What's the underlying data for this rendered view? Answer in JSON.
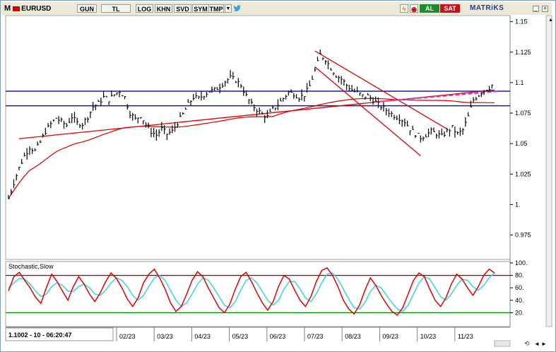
{
  "toolbar": {
    "menu_letter": "M",
    "symbol": "EURUSD",
    "buttons": [
      "GUN",
      "TL",
      "LOG",
      "KHN",
      "SVD",
      "SYM",
      "TMP"
    ],
    "buy_label": "AL",
    "sell_label": "SAT",
    "brand": "MATRiKS"
  },
  "status": {
    "cursor_readout": "1.1002 - 10 - 06:20:47"
  },
  "colors": {
    "price_bars": "#000000",
    "resistance": "#1a1aa0",
    "trend": "#e00000",
    "moving_average": "#d00000",
    "stoch_k": "#e00000",
    "stoch_d": "#40d0e0",
    "stoch_upper": "#a00000",
    "stoch_lower": "#009000"
  },
  "chart_data": [
    {
      "type": "ohlc",
      "symbol": "EURUSD",
      "ylim": [
        0.955,
        1.155
      ],
      "yticks": [
        1.15,
        1.125,
        1.1,
        1.075,
        1.05,
        1.025,
        1,
        0.975
      ],
      "yticklabels": [
        "1.15",
        "1.125",
        "1.1",
        "1.075",
        "1.05",
        "1.025",
        "1.",
        "0.975"
      ],
      "xticklabels": [
        "02/23",
        "03/23",
        "04/23",
        "05/23",
        "06/23",
        "07/23",
        "08/23",
        "09/23",
        "10/23",
        "11/23"
      ],
      "horizontal_lines": [
        1.093,
        1.081
      ],
      "close_path": [
        [
          0,
          1.005
        ],
        [
          4,
          1.018
        ],
        [
          8,
          1.03
        ],
        [
          12,
          1.04
        ],
        [
          16,
          1.047
        ],
        [
          20,
          1.044
        ],
        [
          24,
          1.051
        ],
        [
          28,
          1.06
        ],
        [
          32,
          1.066
        ],
        [
          36,
          1.071
        ],
        [
          40,
          1.068
        ],
        [
          44,
          1.065
        ],
        [
          48,
          1.072
        ],
        [
          52,
          1.067
        ],
        [
          56,
          1.066
        ],
        [
          60,
          1.072
        ],
        [
          64,
          1.08
        ],
        [
          68,
          1.083
        ],
        [
          72,
          1.088
        ],
        [
          76,
          1.086
        ],
        [
          80,
          1.09
        ],
        [
          84,
          1.093
        ],
        [
          88,
          1.088
        ],
        [
          92,
          1.075
        ],
        [
          96,
          1.07
        ],
        [
          100,
          1.073
        ],
        [
          104,
          1.066
        ],
        [
          108,
          1.06
        ],
        [
          112,
          1.057
        ],
        [
          116,
          1.062
        ],
        [
          120,
          1.058
        ],
        [
          124,
          1.06
        ],
        [
          128,
          1.067
        ],
        [
          132,
          1.074
        ],
        [
          136,
          1.082
        ],
        [
          140,
          1.088
        ],
        [
          144,
          1.087
        ],
        [
          148,
          1.09
        ],
        [
          152,
          1.093
        ],
        [
          156,
          1.094
        ],
        [
          160,
          1.097
        ],
        [
          164,
          1.101
        ],
        [
          168,
          1.104
        ],
        [
          172,
          1.102
        ],
        [
          176,
          1.098
        ],
        [
          180,
          1.089
        ],
        [
          184,
          1.082
        ],
        [
          188,
          1.078
        ],
        [
          192,
          1.074
        ],
        [
          196,
          1.072
        ],
        [
          200,
          1.078
        ],
        [
          204,
          1.082
        ],
        [
          208,
          1.087
        ],
        [
          212,
          1.092
        ],
        [
          216,
          1.091
        ],
        [
          220,
          1.088
        ],
        [
          224,
          1.09
        ],
        [
          228,
          1.097
        ],
        [
          232,
          1.11
        ],
        [
          236,
          1.123
        ],
        [
          240,
          1.119
        ],
        [
          244,
          1.112
        ],
        [
          248,
          1.106
        ],
        [
          252,
          1.103
        ],
        [
          256,
          1.098
        ],
        [
          260,
          1.094
        ],
        [
          264,
          1.092
        ],
        [
          268,
          1.089
        ],
        [
          272,
          1.089
        ],
        [
          276,
          1.086
        ],
        [
          280,
          1.082
        ],
        [
          284,
          1.079
        ],
        [
          288,
          1.076
        ],
        [
          292,
          1.073
        ],
        [
          296,
          1.071
        ],
        [
          300,
          1.068
        ],
        [
          304,
          1.062
        ],
        [
          308,
          1.058
        ],
        [
          312,
          1.055
        ],
        [
          316,
          1.057
        ],
        [
          320,
          1.06
        ],
        [
          324,
          1.058
        ],
        [
          328,
          1.056
        ],
        [
          332,
          1.06
        ],
        [
          336,
          1.063
        ],
        [
          340,
          1.058
        ],
        [
          344,
          1.061
        ],
        [
          348,
          1.072
        ],
        [
          352,
          1.086
        ],
        [
          356,
          1.09
        ],
        [
          360,
          1.094
        ],
        [
          364,
          1.096
        ],
        [
          368,
          1.1
        ]
      ],
      "stochastic": {
        "title": "Stochastic,Slow",
        "ylim": [
          0,
          100
        ],
        "yticks": [
          100,
          80,
          60,
          40,
          20
        ],
        "yticklabels": [
          "100.",
          "80.",
          "60.",
          "40.",
          "20."
        ],
        "overbought": 80,
        "oversold": 20,
        "k": [
          55,
          78,
          85,
          72,
          60,
          45,
          35,
          60,
          82,
          70,
          55,
          40,
          62,
          78,
          66,
          50,
          38,
          52,
          70,
          84,
          75,
          60,
          42,
          30,
          44,
          68,
          82,
          90,
          76,
          58,
          36,
          22,
          30,
          50,
          72,
          86,
          78,
          60,
          44,
          28,
          20,
          34,
          58,
          78,
          85,
          70,
          52,
          36,
          24,
          38,
          62,
          80,
          74,
          56,
          40,
          30,
          46,
          70,
          88,
          92,
          80,
          62,
          40,
          26,
          18,
          32,
          56,
          76,
          64,
          48,
          34,
          22,
          16,
          28,
          50,
          72,
          84,
          78,
          58,
          40,
          30,
          44,
          66,
          82,
          74,
          60,
          48,
          62,
          80,
          90,
          84
        ],
        "d": [
          60,
          68,
          75,
          74,
          66,
          55,
          46,
          50,
          62,
          68,
          64,
          55,
          54,
          62,
          66,
          60,
          50,
          48,
          56,
          68,
          76,
          72,
          62,
          48,
          40,
          48,
          62,
          76,
          80,
          72,
          56,
          40,
          30,
          36,
          50,
          66,
          76,
          72,
          60,
          46,
          32,
          28,
          38,
          56,
          72,
          76,
          68,
          54,
          40,
          32,
          40,
          58,
          70,
          70,
          58,
          44,
          38,
          50,
          68,
          82,
          84,
          74,
          58,
          42,
          28,
          26,
          36,
          54,
          64,
          60,
          48,
          36,
          26,
          22,
          32,
          50,
          68,
          78,
          74,
          60,
          46,
          40,
          50,
          64,
          74,
          72,
          62,
          56,
          64,
          76,
          84
        ]
      }
    }
  ]
}
